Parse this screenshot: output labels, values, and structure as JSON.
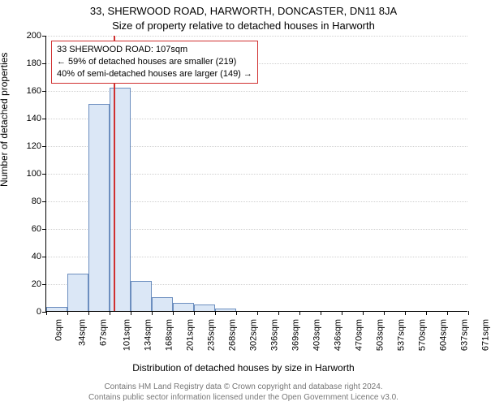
{
  "title": {
    "main": "33, SHERWOOD ROAD, HARWORTH, DONCASTER, DN11 8JA",
    "sub": "Size of property relative to detached houses in Harworth",
    "fontsize_main": 13,
    "fontsize_sub": 13
  },
  "chart": {
    "type": "histogram",
    "background_color": "#ffffff",
    "y_axis": {
      "label": "Number of detached properties",
      "label_fontsize": 12,
      "min": 0,
      "max": 200,
      "tick_step": 20,
      "tick_fontsize": 11,
      "grid_color": "#d0d0d0"
    },
    "x_axis": {
      "label": "Distribution of detached houses by size in Harworth",
      "label_fontsize": 12,
      "tick_labels": [
        "0sqm",
        "34sqm",
        "67sqm",
        "101sqm",
        "134sqm",
        "168sqm",
        "201sqm",
        "235sqm",
        "268sqm",
        "302sqm",
        "336sqm",
        "369sqm",
        "403sqm",
        "436sqm",
        "470sqm",
        "503sqm",
        "537sqm",
        "570sqm",
        "604sqm",
        "637sqm",
        "671sqm"
      ],
      "tick_fontsize": 11
    },
    "bars": {
      "fill_color": "#dbe7f6",
      "border_color": "#6c8ebf",
      "values": [
        3,
        27,
        150,
        162,
        22,
        10,
        6,
        5,
        2,
        0,
        0,
        0,
        0,
        0,
        0,
        0,
        0,
        0,
        0,
        0
      ]
    },
    "marker": {
      "value_sqm": 107,
      "color": "#d03030"
    },
    "annotation": {
      "border_color": "#d03030",
      "background_color": "#ffffff",
      "fontsize": 11,
      "lines": [
        "33 SHERWOOD ROAD: 107sqm",
        "← 59% of detached houses are smaller (219)",
        "40% of semi-detached houses are larger (149) →"
      ]
    }
  },
  "footer": {
    "line1": "Contains HM Land Registry data © Crown copyright and database right 2024.",
    "line2": "Contains public sector information licensed under the Open Government Licence v3.0.",
    "fontsize": 10,
    "color": "#777777"
  }
}
